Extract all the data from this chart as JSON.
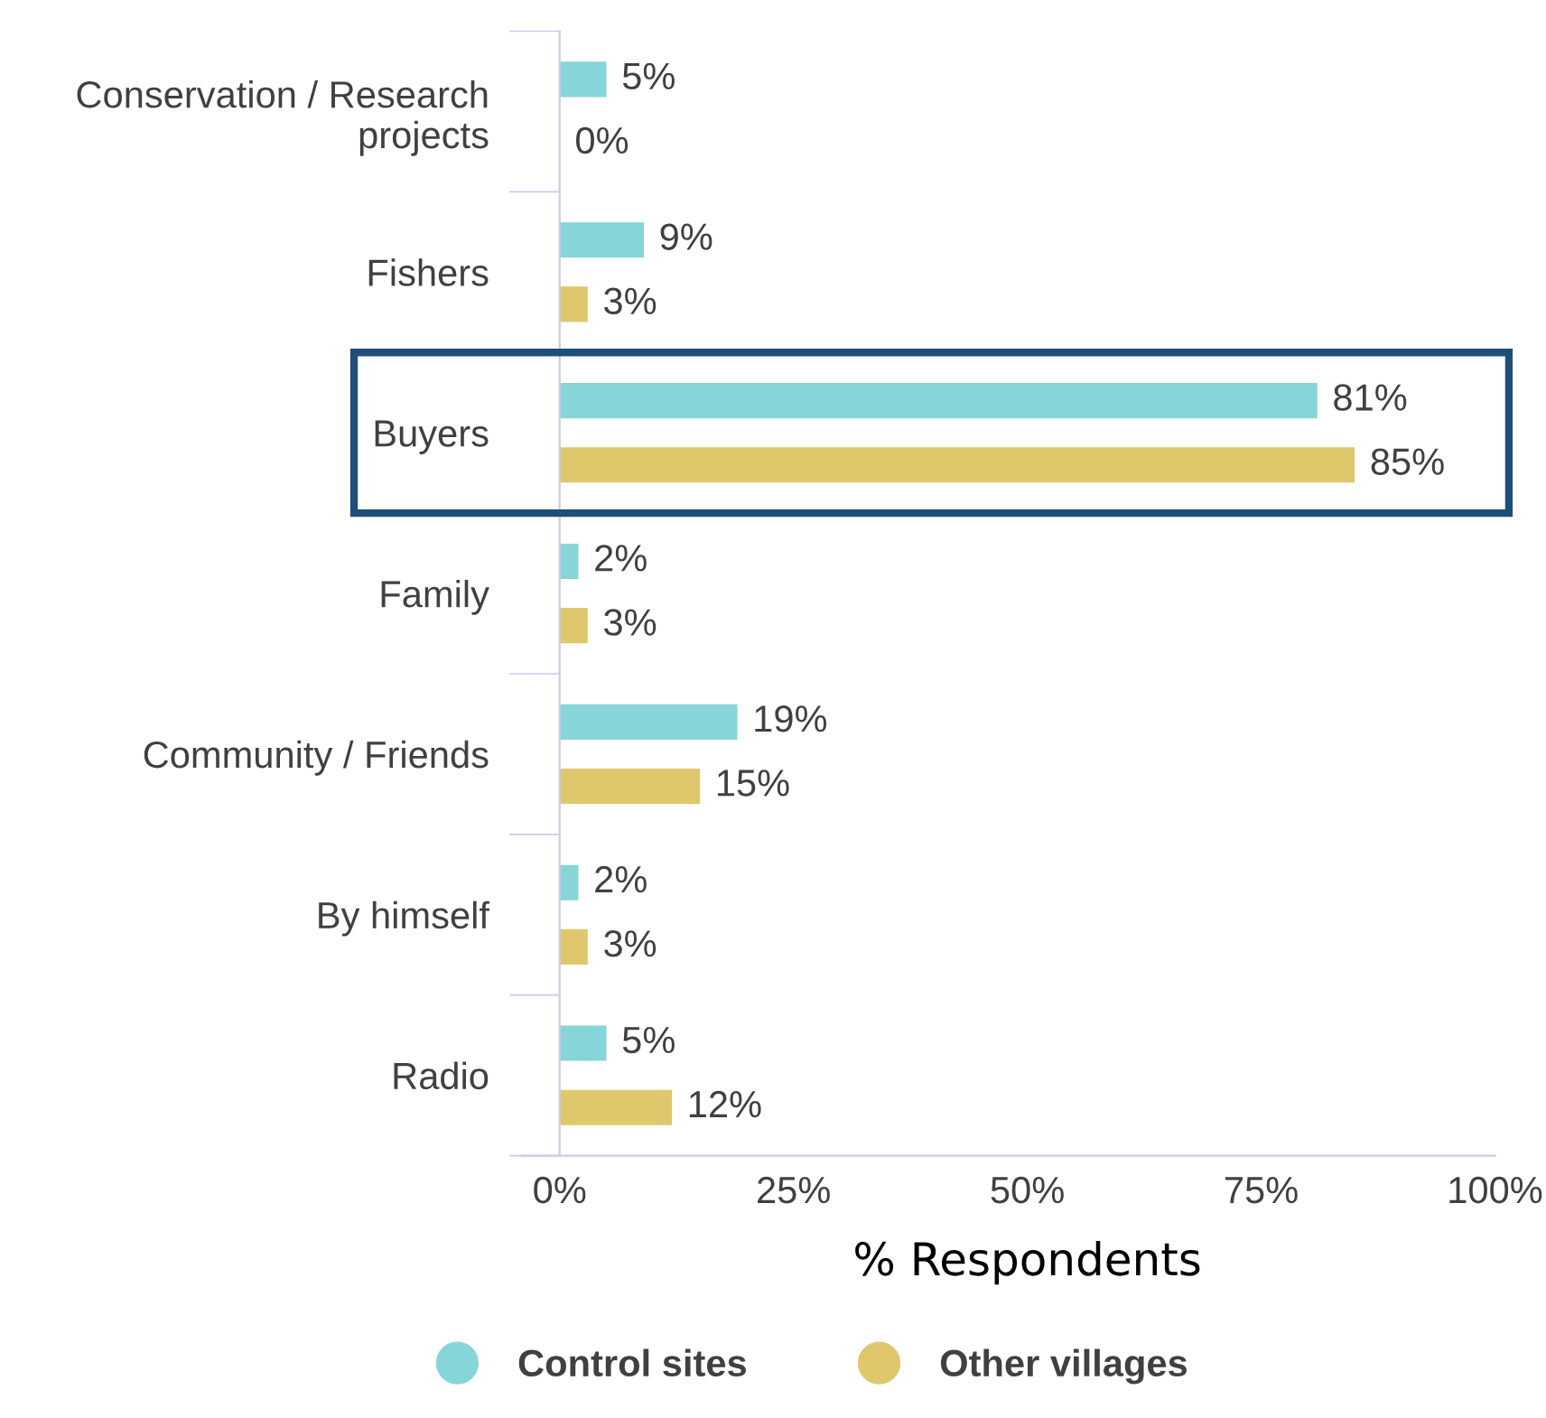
{
  "chart_data": {
    "type": "bar",
    "orientation": "horizontal",
    "xlabel": "% Respondents",
    "categories": [
      "Conservation / Research projects",
      "Fishers",
      "Buyers",
      "Family",
      "Community / Friends",
      "By himself",
      "Radio"
    ],
    "series": [
      {
        "name": "Control sites",
        "color": "#86d5d8",
        "values": [
          5,
          9,
          81,
          2,
          19,
          2,
          5
        ],
        "value_labels": [
          "5%",
          "9%",
          "81%",
          "2%",
          "19%",
          "2%",
          "5%"
        ]
      },
      {
        "name": "Other villages",
        "color": "#e0c76b",
        "values": [
          0,
          3,
          85,
          3,
          15,
          3,
          12
        ],
        "value_labels": [
          "0%",
          "3%",
          "85%",
          "3%",
          "15%",
          "3%",
          "12%"
        ]
      }
    ],
    "xlim": [
      0,
      100
    ],
    "xticks": [
      {
        "value": 0,
        "label": "0%"
      },
      {
        "value": 25,
        "label": "25%"
      },
      {
        "value": 50,
        "label": "50%"
      },
      {
        "value": 75,
        "label": "75%"
      },
      {
        "value": 100,
        "label": "100%"
      }
    ],
    "grid": false,
    "legend": "bottom"
  }
}
